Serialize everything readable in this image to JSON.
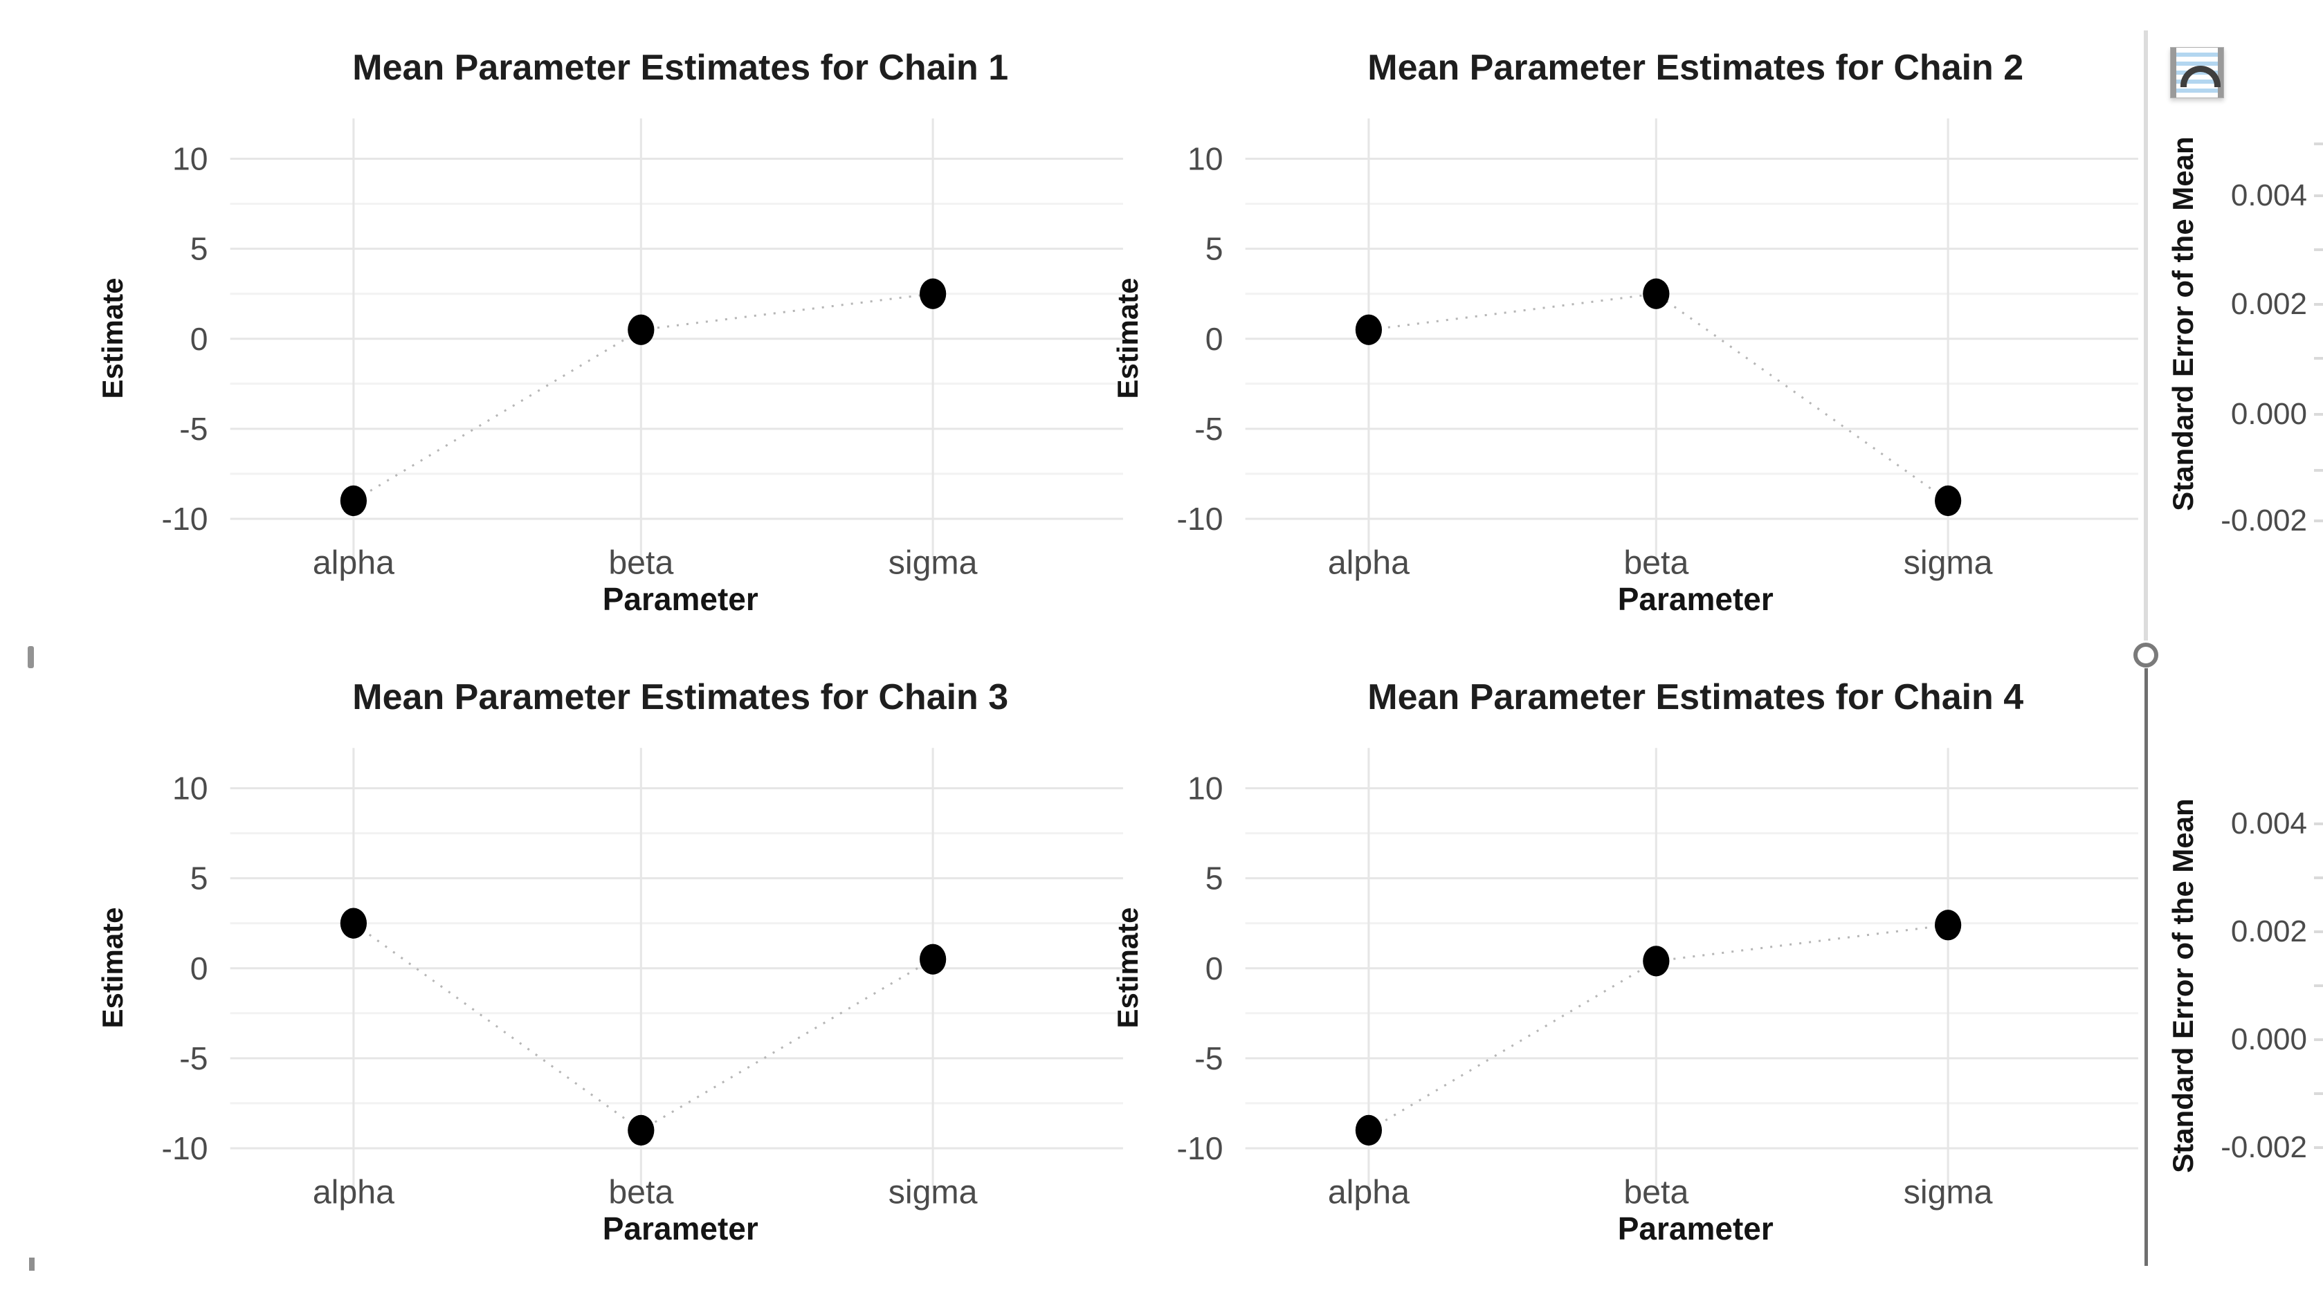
{
  "style": {
    "background": "#ffffff",
    "point_color": "#000000",
    "grid_major": "#e6e6e6",
    "grid_minor": "#f2f2f2",
    "dotted_line": "#b6b6b6",
    "tick_text": "#4b4b4b",
    "title_text": "#1e1e1e",
    "divider_light": "#dcdcdc",
    "divider_dark": "#6f6f6f",
    "icon_stripe_blue": "#b3d6f0",
    "icon_arc_dark": "#3e3e3e"
  },
  "right_pane": {
    "icon": "plot-thumbnail-icon",
    "divider": "vertical-pane-splitter-with-round-handle"
  },
  "chart_data": [
    {
      "type": "scatter",
      "title": "Mean Parameter Estimates for Chain 1",
      "xlabel": "Parameter",
      "ylabel": "Estimate",
      "categories": [
        "alpha",
        "beta",
        "sigma"
      ],
      "values": [
        -9,
        0.5,
        2.5
      ],
      "ylim": [
        -11.7,
        11.7
      ],
      "yticks": [
        10,
        5,
        0,
        -5,
        -10
      ],
      "yticks_minor": [
        7.5,
        2.5,
        -2.5,
        -7.5
      ],
      "grid": true,
      "line_style": "dotted",
      "legend": false
    },
    {
      "type": "scatter",
      "title": "Mean Parameter Estimates for Chain 2",
      "xlabel": "Parameter",
      "ylabel": "Estimate",
      "categories": [
        "alpha",
        "beta",
        "sigma"
      ],
      "values": [
        0.5,
        2.5,
        -9
      ],
      "ylim": [
        -11.7,
        11.7
      ],
      "yticks": [
        10,
        5,
        0,
        -5,
        -10
      ],
      "yticks_minor": [
        7.5,
        2.5,
        -2.5,
        -7.5
      ],
      "grid": true,
      "line_style": "dotted",
      "legend": false
    },
    {
      "type": "scatter",
      "title": "Mean Parameter Estimates for Chain 3",
      "xlabel": "Parameter",
      "ylabel": "Estimate",
      "categories": [
        "alpha",
        "beta",
        "sigma"
      ],
      "values": [
        2.5,
        -9,
        0.5
      ],
      "ylim": [
        -11.7,
        11.7
      ],
      "yticks": [
        10,
        5,
        0,
        -5,
        -10
      ],
      "yticks_minor": [
        7.5,
        2.5,
        -2.5,
        -7.5
      ],
      "grid": true,
      "line_style": "dotted",
      "legend": false
    },
    {
      "type": "scatter",
      "title": "Mean Parameter Estimates for Chain 4",
      "xlabel": "Parameter",
      "ylabel": "Estimate",
      "categories": [
        "alpha",
        "beta",
        "sigma"
      ],
      "values": [
        -9,
        0.4,
        2.4
      ],
      "ylim": [
        -11.7,
        11.7
      ],
      "yticks": [
        10,
        5,
        0,
        -5,
        -10
      ],
      "yticks_minor": [
        7.5,
        2.5,
        -2.5,
        -7.5
      ],
      "grid": true,
      "line_style": "dotted",
      "legend": false
    },
    {
      "type": "scatter",
      "title": "",
      "ylabel": "Standard Error of the Mean",
      "yticks": [
        "0.004",
        "0.002",
        "0.000",
        "-0.002"
      ],
      "partial": true,
      "position": "top-right, cropped at image edge"
    },
    {
      "type": "scatter",
      "title": "",
      "ylabel": "Standard Error of the Mean",
      "yticks": [
        "0.004",
        "0.002",
        "0.000",
        "-0.002"
      ],
      "partial": true,
      "position": "bottom-right, cropped at image edge"
    }
  ]
}
